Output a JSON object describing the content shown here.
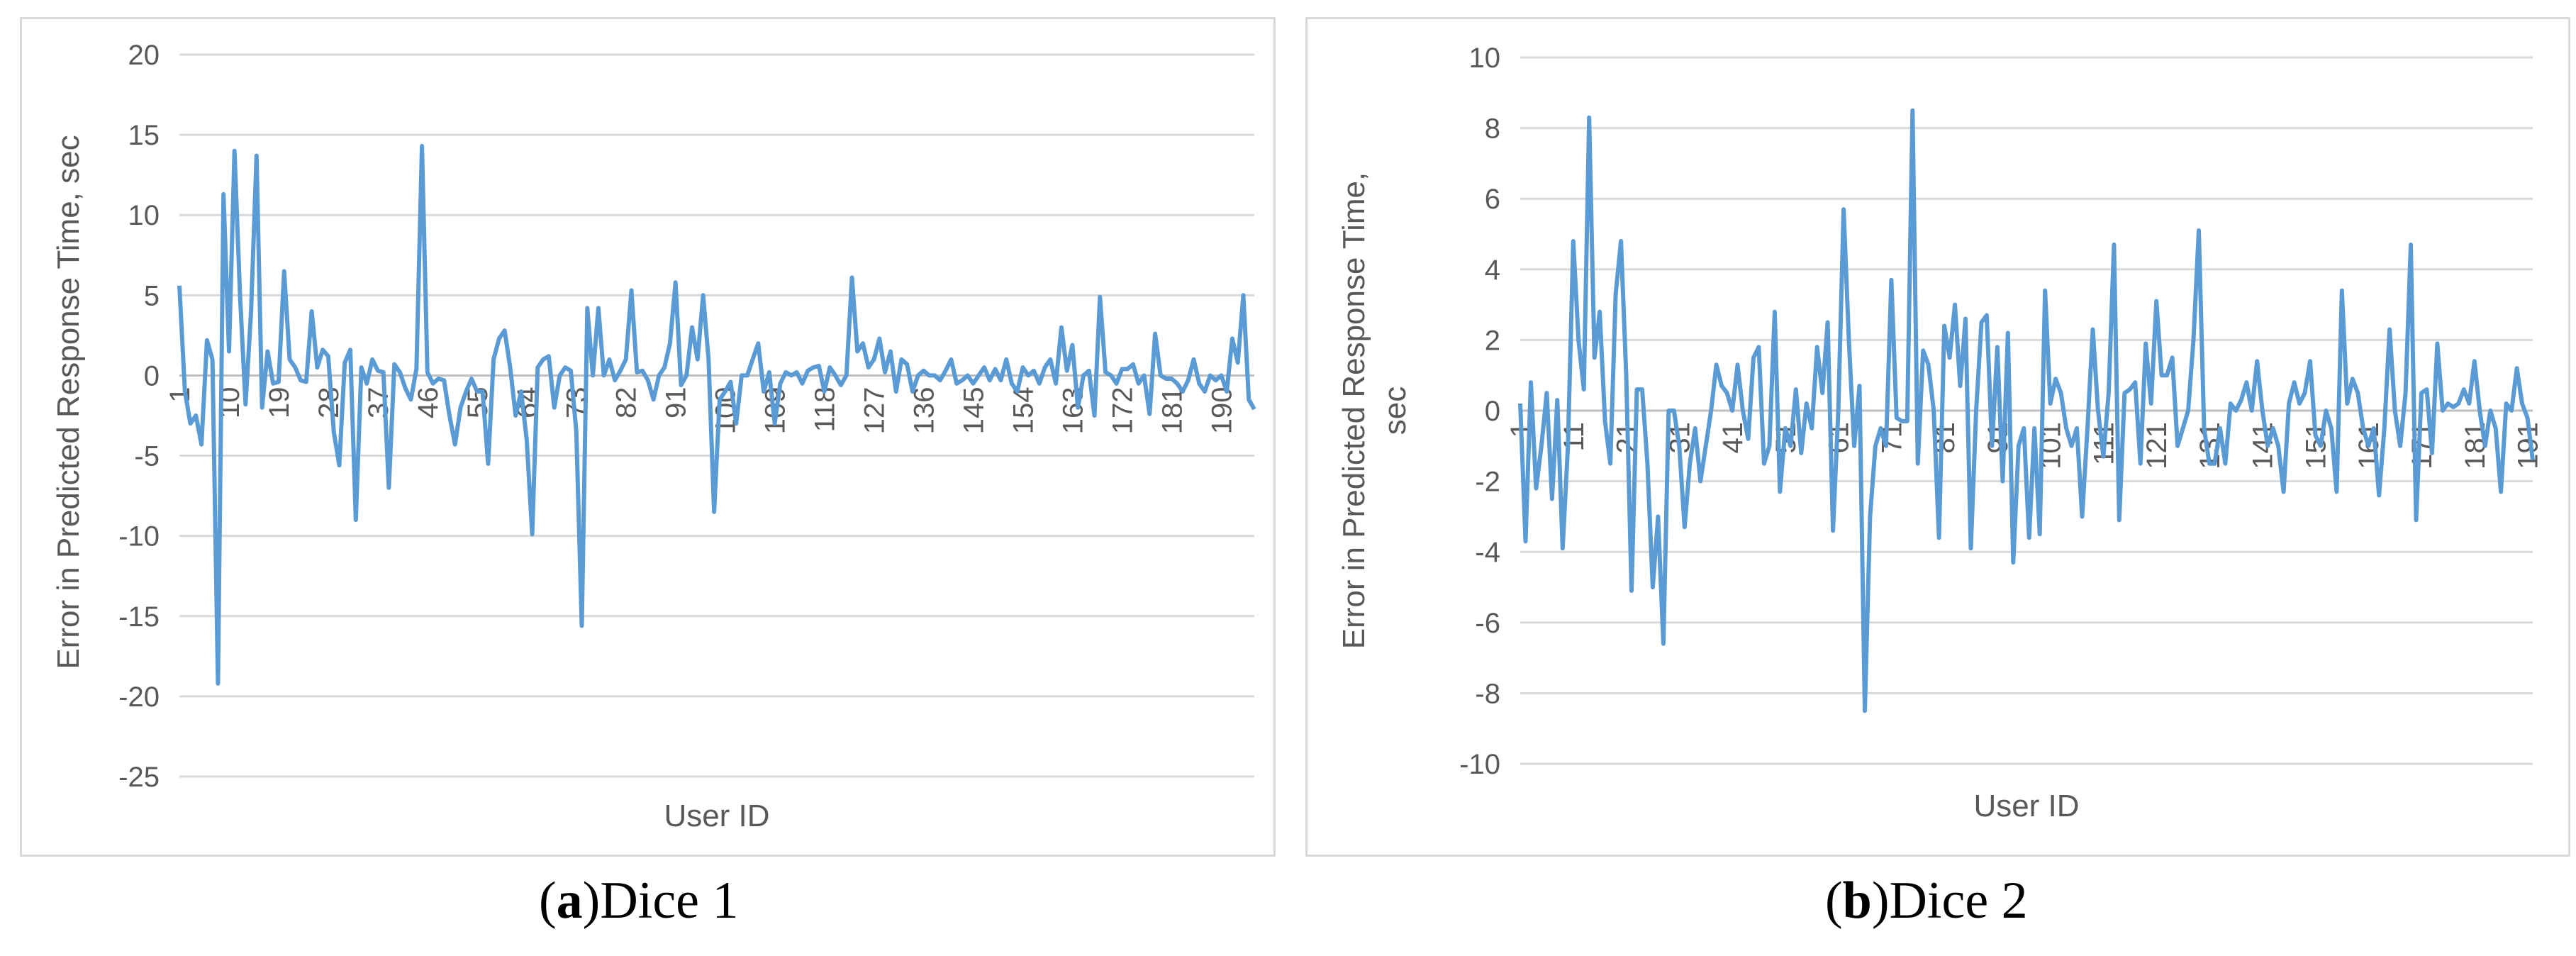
{
  "captions": [
    {
      "letter": "a",
      "text": "Dice 1"
    },
    {
      "letter": "b",
      "text": "Dice 2"
    }
  ],
  "chart_data": [
    {
      "type": "line",
      "xlabel": "User ID",
      "ylabel": "Error in Predicted Response Time, sec",
      "ylim": [
        -25,
        20
      ],
      "yticks": [
        20,
        15,
        10,
        5,
        0,
        -5,
        -10,
        -15,
        -20,
        -25
      ],
      "xticks": [
        1,
        10,
        19,
        28,
        37,
        46,
        55,
        64,
        73,
        82,
        91,
        100,
        109,
        118,
        127,
        136,
        145,
        154,
        163,
        172,
        181,
        190
      ],
      "grid": "horizontal",
      "line_color": "#5b9bd5",
      "x_start": 1,
      "values": [
        5.6,
        -1.0,
        -3.0,
        -2.5,
        -4.3,
        2.2,
        1.0,
        -19.2,
        11.3,
        1.5,
        14.0,
        5.0,
        -1.8,
        4.0,
        13.7,
        -2.0,
        1.5,
        -0.5,
        -0.4,
        6.5,
        1.0,
        0.5,
        -0.3,
        -0.4,
        4.0,
        0.5,
        1.6,
        1.2,
        -3.5,
        -5.6,
        0.8,
        1.6,
        -9.0,
        0.5,
        -0.5,
        1.0,
        0.3,
        0.2,
        -7.0,
        0.7,
        0.2,
        -0.8,
        -1.5,
        0.4,
        14.3,
        0.2,
        -0.5,
        -0.2,
        -0.3,
        -2.5,
        -4.3,
        -2.0,
        -1.0,
        -0.2,
        -1.0,
        -1.0,
        -5.5,
        1.0,
        2.3,
        2.8,
        0.5,
        -2.5,
        -1.0,
        -4.0,
        -9.9,
        0.5,
        1.0,
        1.2,
        -2.0,
        0.0,
        0.5,
        0.3,
        -3.5,
        -15.6,
        4.2,
        0.0,
        4.2,
        0.0,
        1.0,
        -0.3,
        0.3,
        1.0,
        5.3,
        0.2,
        0.3,
        -0.3,
        -1.5,
        0.0,
        0.5,
        2.0,
        5.8,
        -0.6,
        0.0,
        3.0,
        1.0,
        5.0,
        1.0,
        -8.5,
        -1.5,
        -1.0,
        -0.4,
        -3.0,
        0.0,
        0.0,
        1.0,
        2.0,
        -1.0,
        0.2,
        -3.0,
        -0.5,
        0.2,
        0.0,
        0.2,
        -0.5,
        0.3,
        0.5,
        0.6,
        -1.0,
        0.5,
        0.0,
        -0.6,
        0.0,
        6.1,
        1.5,
        2.0,
        0.5,
        1.0,
        2.3,
        0.2,
        1.5,
        -1.0,
        1.0,
        0.7,
        -1.0,
        0.0,
        0.3,
        0.0,
        0.0,
        -0.3,
        0.3,
        1.0,
        -0.5,
        -0.3,
        0.0,
        -0.5,
        0.0,
        0.5,
        -0.3,
        0.4,
        -0.3,
        1.0,
        -0.5,
        -1.0,
        0.5,
        0.0,
        0.3,
        -0.5,
        0.5,
        1.0,
        -0.5,
        3.0,
        0.3,
        1.9,
        -2.0,
        0.0,
        0.3,
        -2.5,
        4.9,
        0.2,
        0.0,
        -0.5,
        0.4,
        0.4,
        0.7,
        -0.5,
        0.0,
        -2.4,
        2.6,
        0.0,
        -0.2,
        -0.2,
        -0.5,
        -1.0,
        -0.3,
        1.0,
        -0.5,
        -1.0,
        0.0,
        -0.3,
        0.0,
        -1.0,
        2.3,
        0.8,
        5.0,
        -1.5,
        -2.1
      ]
    },
    {
      "type": "line",
      "xlabel": "User ID",
      "ylabel": "Error in Predicted Response Time, sec",
      "ylim": [
        -10,
        10
      ],
      "yticks": [
        10,
        8,
        6,
        4,
        2,
        0,
        -2,
        -4,
        -6,
        -8,
        -10
      ],
      "xticks": [
        1,
        11,
        21,
        31,
        41,
        51,
        61,
        71,
        81,
        91,
        101,
        111,
        121,
        131,
        141,
        151,
        161,
        171,
        181,
        191
      ],
      "grid": "horizontal",
      "line_color": "#5b9bd5",
      "x_start": 1,
      "values": [
        0.2,
        -3.7,
        0.8,
        -2.2,
        -1.0,
        0.5,
        -2.5,
        0.3,
        -3.9,
        -1.0,
        4.8,
        2.0,
        0.6,
        8.3,
        1.5,
        2.8,
        -0.3,
        -1.5,
        3.3,
        4.8,
        1.0,
        -5.1,
        0.6,
        0.6,
        -1.5,
        -5.0,
        -3.0,
        -6.6,
        0.0,
        0.0,
        -1.0,
        -3.3,
        -1.5,
        -0.5,
        -2.0,
        -1.0,
        0.0,
        1.3,
        0.7,
        0.5,
        0.0,
        1.3,
        0.0,
        -0.8,
        1.5,
        1.8,
        -1.5,
        -1.0,
        2.8,
        -2.3,
        -0.5,
        -1.0,
        0.6,
        -1.2,
        0.2,
        -0.5,
        1.8,
        0.5,
        2.5,
        -3.4,
        0.0,
        5.7,
        2.0,
        -1.0,
        0.7,
        -8.5,
        -3.0,
        -1.0,
        -0.5,
        -1.0,
        3.7,
        -0.2,
        -0.3,
        -0.3,
        8.5,
        -1.5,
        1.7,
        1.3,
        0.0,
        -3.6,
        2.4,
        1.5,
        3.0,
        0.7,
        2.6,
        -3.9,
        0.0,
        2.5,
        2.7,
        -1.0,
        1.8,
        -2.0,
        2.2,
        -4.3,
        -1.0,
        -0.5,
        -3.6,
        -0.5,
        -3.5,
        3.4,
        0.2,
        0.9,
        0.5,
        -0.5,
        -1.0,
        -0.5,
        -3.0,
        -0.5,
        2.3,
        0.0,
        -1.3,
        0.5,
        4.7,
        -3.1,
        0.5,
        0.6,
        0.8,
        -1.5,
        1.9,
        0.2,
        3.1,
        1.0,
        1.0,
        1.5,
        -1.0,
        -0.5,
        0.0,
        2.0,
        5.1,
        -0.5,
        -1.5,
        -1.5,
        -0.5,
        -1.5,
        0.2,
        0.0,
        0.3,
        0.8,
        0.0,
        1.4,
        0.0,
        -1.0,
        -0.5,
        -1.0,
        -2.3,
        0.2,
        0.8,
        0.2,
        0.5,
        1.4,
        -0.7,
        -1.0,
        0.0,
        -0.5,
        -2.3,
        3.4,
        0.2,
        0.9,
        0.5,
        -0.5,
        -1.0,
        -0.5,
        -2.4,
        -0.5,
        2.3,
        0.0,
        -1.0,
        0.5,
        4.7,
        -3.1,
        0.5,
        0.6,
        -1.2,
        1.9,
        0.0,
        0.2,
        0.1,
        0.2,
        0.6,
        0.2,
        1.4,
        0.0,
        -1.0,
        0.0,
        -0.5,
        -2.3,
        0.2,
        0.0,
        1.2,
        0.2,
        -0.2,
        -1.4
      ]
    }
  ]
}
